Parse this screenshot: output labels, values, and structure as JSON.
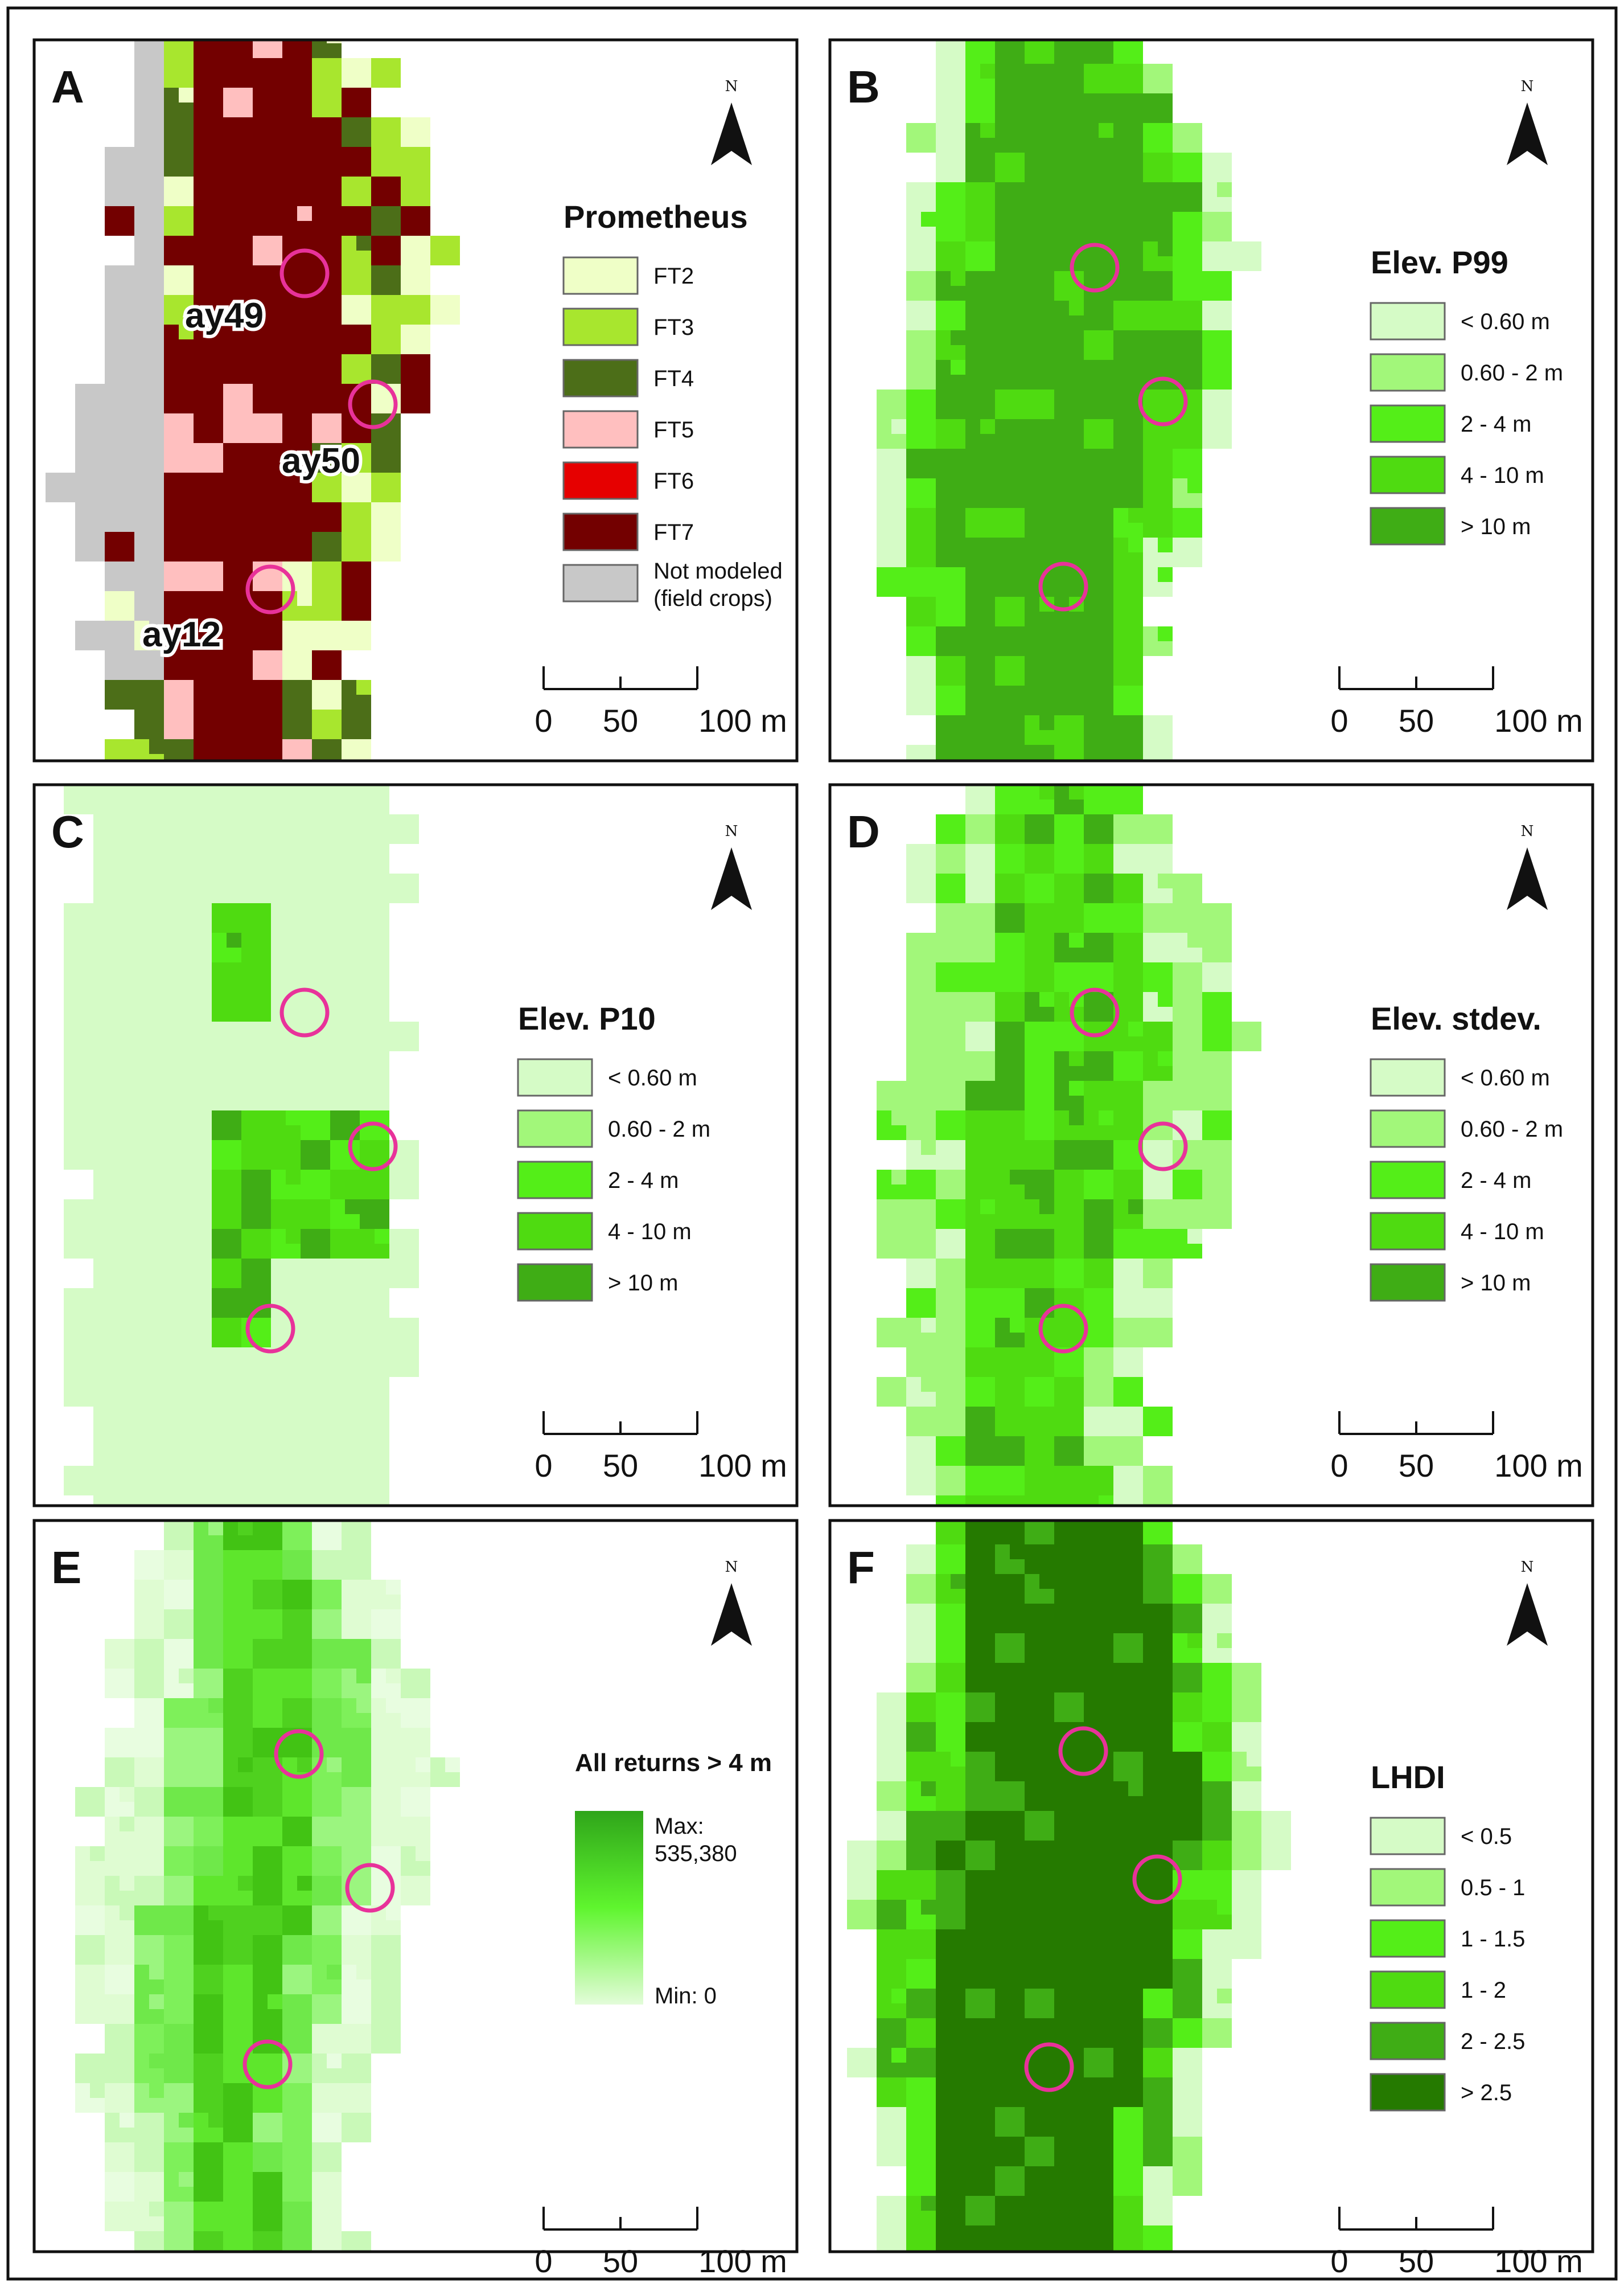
{
  "colors": {
    "ring": "#e8329a",
    "ft2": "#efffc7",
    "ft3": "#a8e62e",
    "ft4": "#4c6e18",
    "ft5": "#ffbfbf",
    "ft6": "#e60000",
    "ft7": "#730000",
    "not_modeled": "#c8c8c8",
    "g1": "#d5fbc6",
    "g2": "#a2f77a",
    "g3": "#54ee18",
    "g4": "#4fdb11",
    "g5": "#3fad15",
    "g6": "#257a00",
    "ramp_top": "#2fa51a",
    "ramp_mid": "#5ff52e",
    "ramp_bottom": "#e3fcd9"
  },
  "north_label": "N",
  "scale": {
    "ticks": [
      "0",
      "50",
      "100 m"
    ]
  },
  "panels": [
    {
      "letter": "A",
      "legend_title": "Prometheus",
      "legend_items": [
        {
          "label": "FT2",
          "color": "#efffc7"
        },
        {
          "label": "FT3",
          "color": "#a8e62e"
        },
        {
          "label": "FT4",
          "color": "#4c6e18"
        },
        {
          "label": "FT5",
          "color": "#ffbfbf"
        },
        {
          "label": "FT6",
          "color": "#e60000"
        },
        {
          "label": "FT7",
          "color": "#730000"
        },
        {
          "label": "Not modeled\n(field crops)",
          "color": "#c8c8c8"
        }
      ],
      "plot_labels": [
        "ay49",
        "ay50",
        "ay12"
      ]
    },
    {
      "letter": "B",
      "legend_title": "Elev. P99",
      "legend_items": [
        {
          "label": "< 0.60 m",
          "color": "#d5fbc6"
        },
        {
          "label": "0.60 - 2 m",
          "color": "#a2f77a"
        },
        {
          "label": "2 - 4 m",
          "color": "#54ee18"
        },
        {
          "label": "4 - 10 m",
          "color": "#4fdb11"
        },
        {
          "label": "> 10 m",
          "color": "#3fad15"
        }
      ]
    },
    {
      "letter": "C",
      "legend_title": "Elev. P10",
      "legend_items": [
        {
          "label": "< 0.60 m",
          "color": "#d5fbc6"
        },
        {
          "label": "0.60 - 2 m",
          "color": "#a2f77a"
        },
        {
          "label": "2 - 4 m",
          "color": "#54ee18"
        },
        {
          "label": "4 - 10 m",
          "color": "#4fdb11"
        },
        {
          "label": "> 10 m",
          "color": "#3fad15"
        }
      ]
    },
    {
      "letter": "D",
      "legend_title": "Elev. stdev.",
      "legend_items": [
        {
          "label": "< 0.60 m",
          "color": "#d5fbc6"
        },
        {
          "label": "0.60 - 2 m",
          "color": "#a2f77a"
        },
        {
          "label": "2 - 4 m",
          "color": "#54ee18"
        },
        {
          "label": "4 - 10 m",
          "color": "#4fdb11"
        },
        {
          "label": "> 10 m",
          "color": "#3fad15"
        }
      ]
    },
    {
      "letter": "E",
      "legend_title": "All returns > 4 m",
      "ramp_max": "Max:\n535,380",
      "ramp_min": "Min: 0"
    },
    {
      "letter": "F",
      "legend_title": "LHDI",
      "legend_items": [
        {
          "label": "< 0.5",
          "color": "#d5fbc6"
        },
        {
          "label": "0.5 - 1",
          "color": "#a2f77a"
        },
        {
          "label": "1 - 1.5",
          "color": "#54ee18"
        },
        {
          "label": "1 - 2",
          "color": "#4fdb11"
        },
        {
          "label": "2 - 2.5",
          "color": "#3fad15"
        },
        {
          "label": "> 2.5",
          "color": "#257a00"
        }
      ]
    }
  ]
}
